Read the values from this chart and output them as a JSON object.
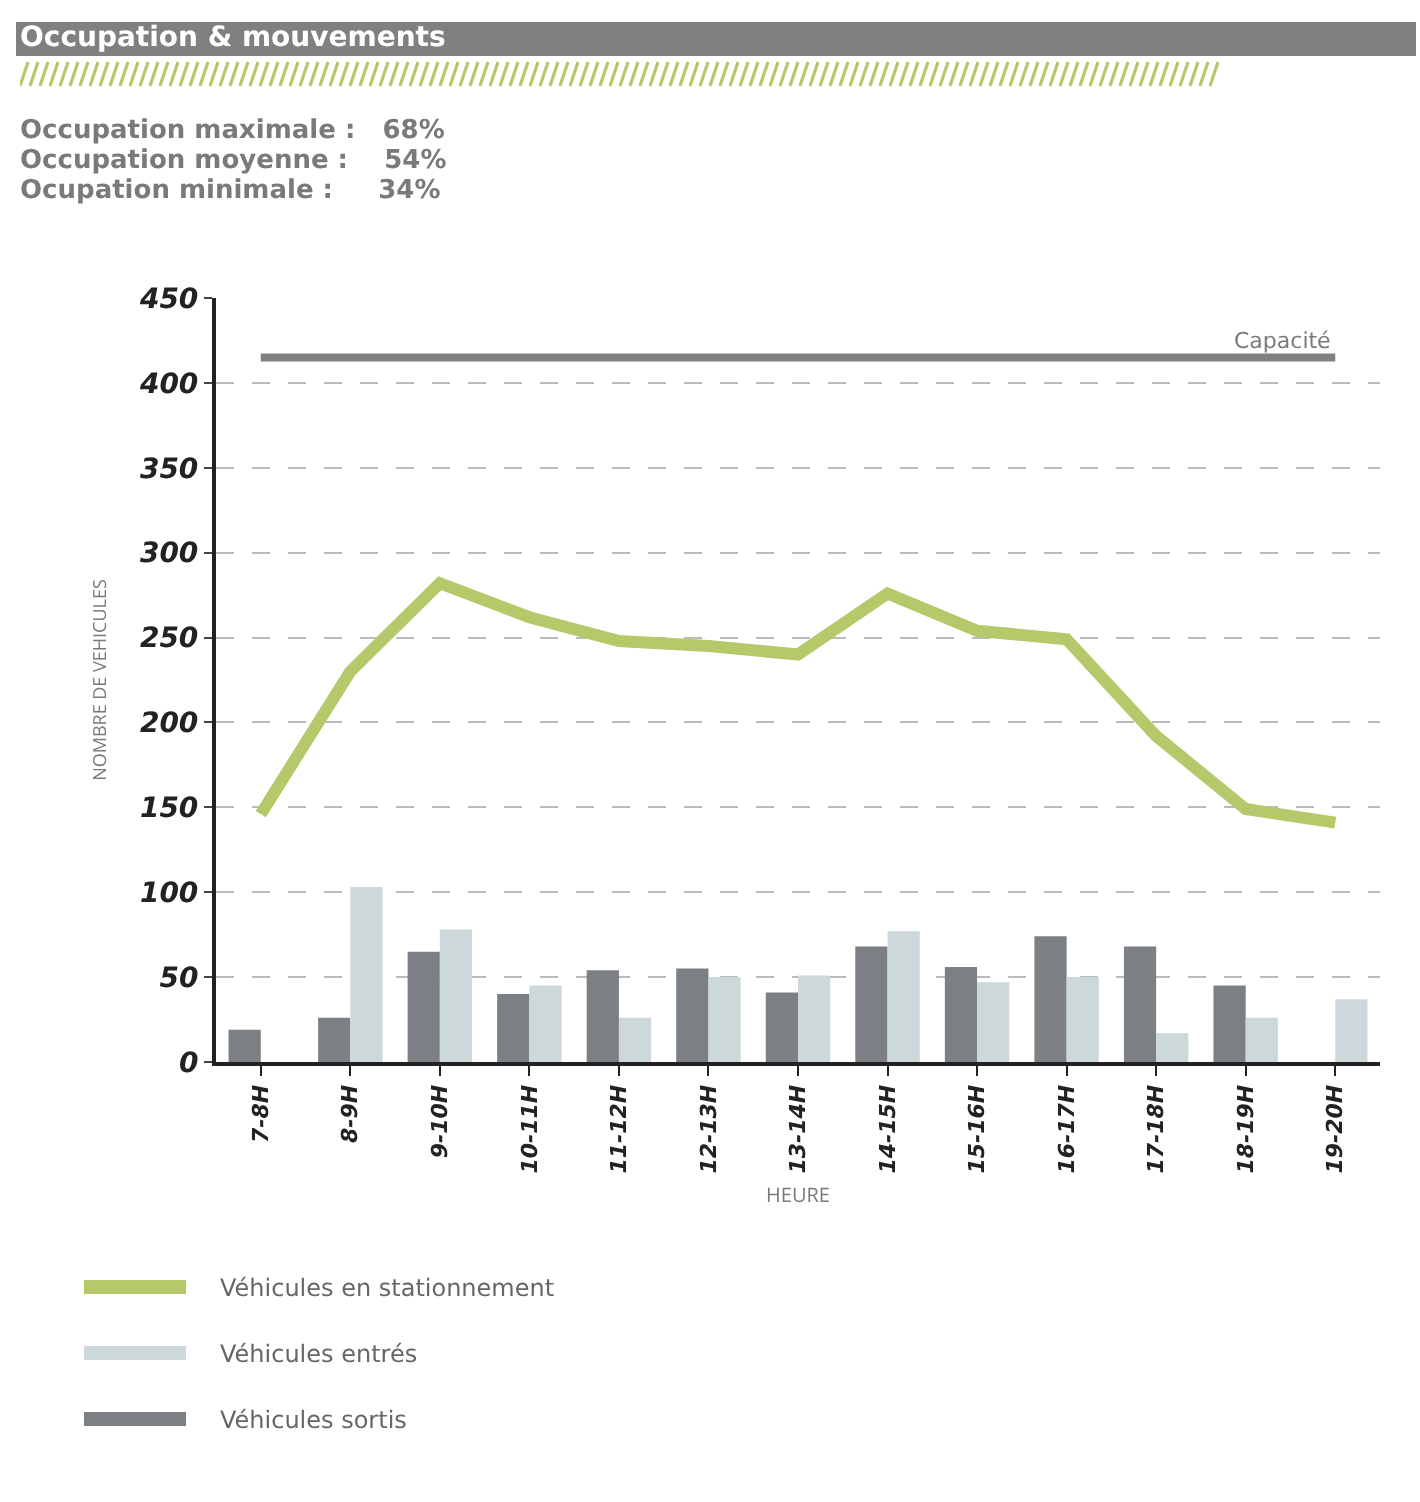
{
  "chart_data": {
    "type": "bar",
    "title": "Occupation & mouvements",
    "annotations": [
      "Occupation maximale :   68%",
      "Occupation moyenne :    54%",
      "Ocupation minimale :     34%"
    ],
    "xlabel": "HEURE",
    "ylabel": "NOMBRE DE VEHICULES",
    "categories": [
      "7-8H",
      "8-9H",
      "9-10H",
      "10-11H",
      "11-12H",
      "12-13H",
      "13-14H",
      "14-15H",
      "15-16H",
      "16-17H",
      "17-18H",
      "18-19H",
      "19-20H"
    ],
    "series": [
      {
        "name": "Véhicules sortis",
        "color": "#7c8085",
        "values": [
          19,
          26,
          65,
          40,
          54,
          55,
          41,
          68,
          56,
          74,
          68,
          45,
          null
        ]
      },
      {
        "name": "Véhicules entrés",
        "color": "#cdd8da",
        "values": [
          null,
          103,
          78,
          45,
          26,
          50,
          51,
          77,
          47,
          50,
          17,
          26,
          37
        ]
      },
      {
        "name": "Véhicules en stationnement",
        "type": "line",
        "color": "#b5c86a",
        "values": [
          146,
          230,
          282,
          262,
          248,
          245,
          240,
          276,
          254,
          249,
          192,
          149,
          141
        ]
      }
    ],
    "ylim": [
      0,
      450
    ],
    "yticks": [
      0,
      50,
      100,
      150,
      200,
      250,
      300,
      350,
      400,
      450
    ],
    "ref_lines": [
      {
        "axis": "y",
        "value": 415,
        "label": "Capacité",
        "color": "#808080"
      }
    ],
    "grid": "y",
    "legend": "bottom left"
  }
}
